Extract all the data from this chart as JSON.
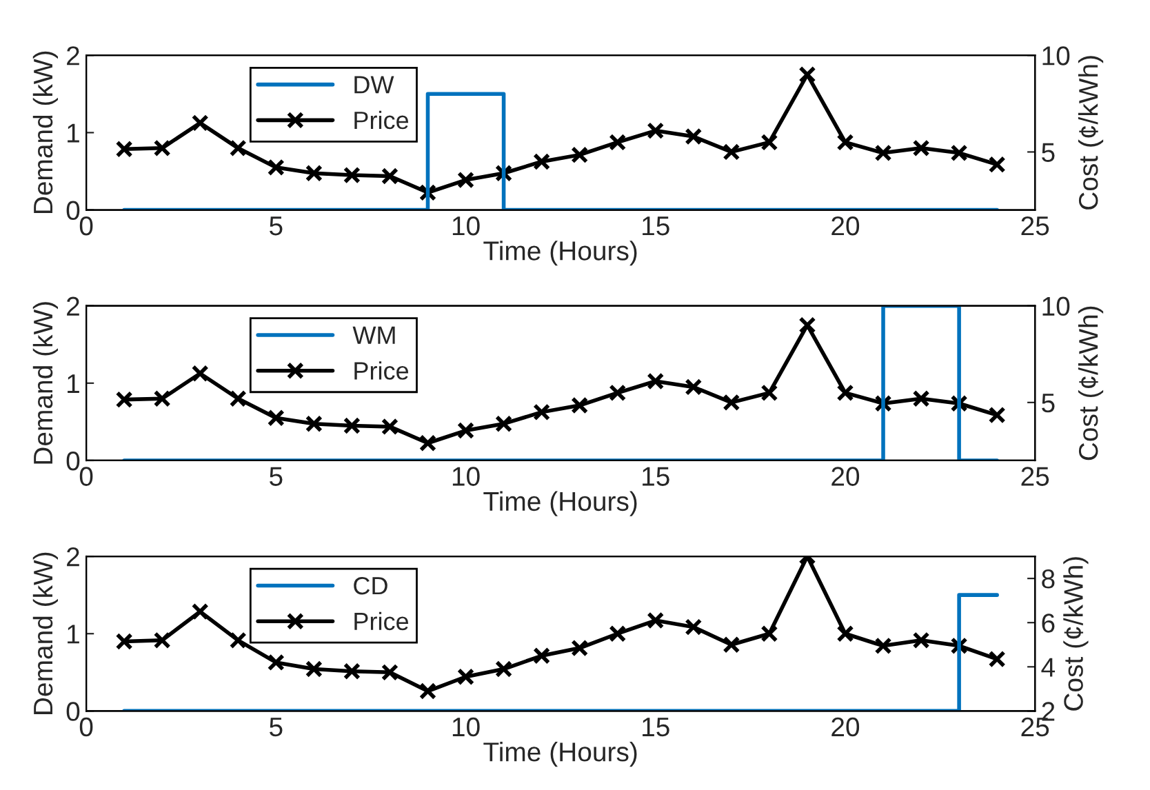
{
  "chart_data": [
    {
      "type": "step",
      "xlabel": "Time (Hours)",
      "ylabel": "Demand (kW)",
      "y2label": "Cost (¢/kWh)",
      "xlim": [
        0,
        25
      ],
      "xticks": [
        0,
        5,
        10,
        15,
        20,
        25
      ],
      "ylim": [
        0,
        2
      ],
      "yticks": [
        0,
        1,
        2
      ],
      "y2lim": [
        2,
        10
      ],
      "y2ticks": [
        5,
        10
      ],
      "grid": false,
      "legend": "top left",
      "x": [
        1,
        2,
        3,
        4,
        5,
        6,
        7,
        8,
        9,
        10,
        11,
        12,
        13,
        14,
        15,
        16,
        17,
        18,
        19,
        20,
        21,
        22,
        23,
        24
      ],
      "series": [
        {
          "name": "DW",
          "color": "#0072bd",
          "axis": "y",
          "marker": "none",
          "values": [
            0,
            0,
            0,
            0,
            0,
            0,
            0,
            0,
            1.5,
            1.5,
            0,
            0,
            0,
            0,
            0,
            0,
            0,
            0,
            0,
            0,
            0,
            0,
            0,
            0
          ]
        },
        {
          "name": "Price",
          "type": "line",
          "color": "#000000",
          "axis": "y2",
          "marker": "cross",
          "values": [
            5.15,
            5.2,
            6.5,
            5.2,
            4.2,
            3.9,
            3.8,
            3.75,
            2.9,
            3.55,
            3.9,
            4.5,
            4.85,
            5.5,
            6.1,
            5.8,
            5.0,
            5.5,
            9.0,
            5.5,
            4.95,
            5.2,
            4.95,
            4.35
          ]
        }
      ]
    },
    {
      "type": "step",
      "xlabel": "Time (Hours)",
      "ylabel": "Demand (kW)",
      "y2label": "Cost (¢/kWh)",
      "xlim": [
        0,
        25
      ],
      "xticks": [
        0,
        5,
        10,
        15,
        20,
        25
      ],
      "ylim": [
        0,
        2
      ],
      "yticks": [
        0,
        1,
        2
      ],
      "y2lim": [
        2,
        10
      ],
      "y2ticks": [
        5,
        10
      ],
      "grid": false,
      "legend": "top left",
      "x": [
        1,
        2,
        3,
        4,
        5,
        6,
        7,
        8,
        9,
        10,
        11,
        12,
        13,
        14,
        15,
        16,
        17,
        18,
        19,
        20,
        21,
        22,
        23,
        24
      ],
      "series": [
        {
          "name": "WM",
          "color": "#0072bd",
          "axis": "y",
          "marker": "none",
          "values": [
            0,
            0,
            0,
            0,
            0,
            0,
            0,
            0,
            0,
            0,
            0,
            0,
            0,
            0,
            0,
            0,
            0,
            0,
            0,
            0,
            2,
            2,
            0,
            0
          ]
        },
        {
          "name": "Price",
          "type": "line",
          "color": "#000000",
          "axis": "y2",
          "marker": "cross",
          "values": [
            5.15,
            5.2,
            6.5,
            5.2,
            4.2,
            3.9,
            3.8,
            3.75,
            2.9,
            3.55,
            3.9,
            4.5,
            4.85,
            5.5,
            6.1,
            5.8,
            5.0,
            5.5,
            9.0,
            5.5,
            4.95,
            5.2,
            4.95,
            4.35
          ]
        }
      ]
    },
    {
      "type": "step",
      "xlabel": "Time (Hours)",
      "ylabel": "Demand (kW)",
      "y2label": "Cost (¢/kWh)",
      "xlim": [
        0,
        25
      ],
      "xticks": [
        0,
        5,
        10,
        15,
        20,
        25
      ],
      "ylim": [
        0,
        2
      ],
      "yticks": [
        0,
        1,
        2
      ],
      "y2lim": [
        2,
        9
      ],
      "y2ticks": [
        2,
        4,
        6,
        8
      ],
      "grid": false,
      "legend": "top left",
      "x": [
        1,
        2,
        3,
        4,
        5,
        6,
        7,
        8,
        9,
        10,
        11,
        12,
        13,
        14,
        15,
        16,
        17,
        18,
        19,
        20,
        21,
        22,
        23,
        24
      ],
      "series": [
        {
          "name": "CD",
          "color": "#0072bd",
          "axis": "y",
          "marker": "none",
          "values": [
            0,
            0,
            0,
            0,
            0,
            0,
            0,
            0,
            0,
            0,
            0,
            0,
            0,
            0,
            0,
            0,
            0,
            0,
            0,
            0,
            0,
            0,
            1.5,
            1.5
          ]
        },
        {
          "name": "Price",
          "type": "line",
          "color": "#000000",
          "axis": "y2",
          "marker": "cross",
          "values": [
            5.15,
            5.2,
            6.5,
            5.2,
            4.2,
            3.9,
            3.8,
            3.75,
            2.9,
            3.55,
            3.9,
            4.5,
            4.85,
            5.5,
            6.1,
            5.8,
            5.0,
            5.5,
            9.0,
            5.5,
            4.95,
            5.2,
            4.95,
            4.35
          ]
        }
      ]
    }
  ]
}
